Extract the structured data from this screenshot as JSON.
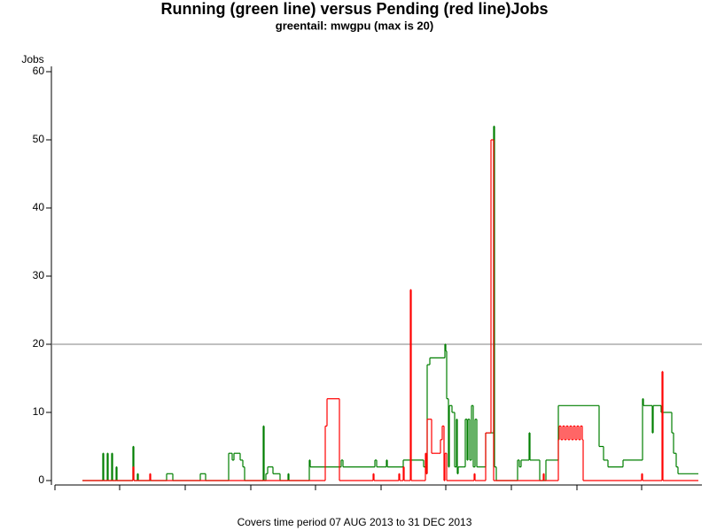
{
  "chart_data": {
    "type": "line",
    "step": "post",
    "title": "Running (green line) versus Pending (red line)Jobs",
    "subtitle": "greentail: mwgpu (max is 20)",
    "y_label": "Jobs",
    "footnote": "Covers time period 07 AUG 2013 to 31 DEC 2013",
    "ylim": [
      0,
      60
    ],
    "yticks": [
      0,
      10,
      20,
      30,
      40,
      50,
      60
    ],
    "xlim": [
      0,
      730
    ],
    "xticks": [
      0,
      73,
      147,
      221,
      294,
      368,
      441,
      515,
      589,
      662
    ],
    "reference_line": 20,
    "series": [
      {
        "name": "Running",
        "color": "#007f00",
        "x": [
          31,
          54,
          55,
          59,
          60,
          64,
          65,
          69,
          70,
          88,
          89,
          93,
          94,
          126,
          133,
          164,
          170,
          196,
          200,
          202,
          209,
          212,
          214,
          235,
          236,
          238,
          240,
          246,
          254,
          263,
          264,
          287,
          288,
          323,
          325,
          361,
          363,
          374,
          375,
          393,
          416,
          419,
          420,
          423,
          440,
          441,
          442,
          444,
          445,
          448,
          451,
          453,
          454,
          455,
          463,
          465,
          466,
          468,
          470,
          472,
          474,
          476,
          486,
          495,
          496,
          498,
          522,
          524,
          526,
          535,
          536,
          547,
          554,
          568,
          614,
          619,
          624,
          641,
          663,
          664,
          674,
          675,
          684,
          696,
          698,
          701,
          703,
          726
        ],
        "values": [
          0,
          4,
          0,
          4,
          0,
          4,
          0,
          2,
          0,
          5,
          0,
          1,
          0,
          1,
          0,
          1,
          0,
          4,
          3,
          4,
          3,
          2,
          0,
          8,
          0,
          1,
          2,
          1,
          0,
          1,
          0,
          3,
          2,
          3,
          2,
          3,
          2,
          3,
          2,
          3,
          2,
          1,
          17,
          18,
          20,
          19,
          12,
          2,
          11,
          10,
          2,
          9,
          1,
          2,
          9,
          3,
          9,
          3,
          11,
          2,
          9,
          2,
          7,
          52,
          2,
          0,
          3,
          2,
          3,
          7,
          3,
          0,
          3,
          11,
          5,
          3,
          2,
          3,
          12,
          11,
          7,
          11,
          10,
          7,
          4,
          2,
          1,
          1
        ]
      },
      {
        "name": "Pending",
        "color": "#ff0000",
        "x": [
          31,
          88,
          89,
          107,
          108,
          305,
          307,
          321,
          359,
          360,
          388,
          389,
          393,
          394,
          401,
          402,
          418,
          419,
          420,
          425,
          435,
          437,
          439,
          440,
          442,
          473,
          474,
          486,
          492,
          495,
          551,
          552,
          568,
          569,
          571,
          573,
          575,
          577,
          579,
          581,
          583,
          585,
          587,
          589,
          591,
          593,
          595,
          596,
          662,
          663,
          685,
          686,
          726
        ],
        "values": [
          0,
          2,
          0,
          1,
          0,
          8,
          12,
          0,
          1,
          0,
          1,
          0,
          2,
          0,
          28,
          0,
          4,
          1,
          9,
          4,
          6,
          8,
          0,
          4,
          0,
          1,
          0,
          7,
          50,
          0,
          1,
          0,
          6,
          8,
          6,
          8,
          6,
          8,
          6,
          8,
          6,
          8,
          6,
          8,
          6,
          8,
          6,
          0,
          1,
          0,
          16,
          0,
          0
        ]
      }
    ]
  }
}
